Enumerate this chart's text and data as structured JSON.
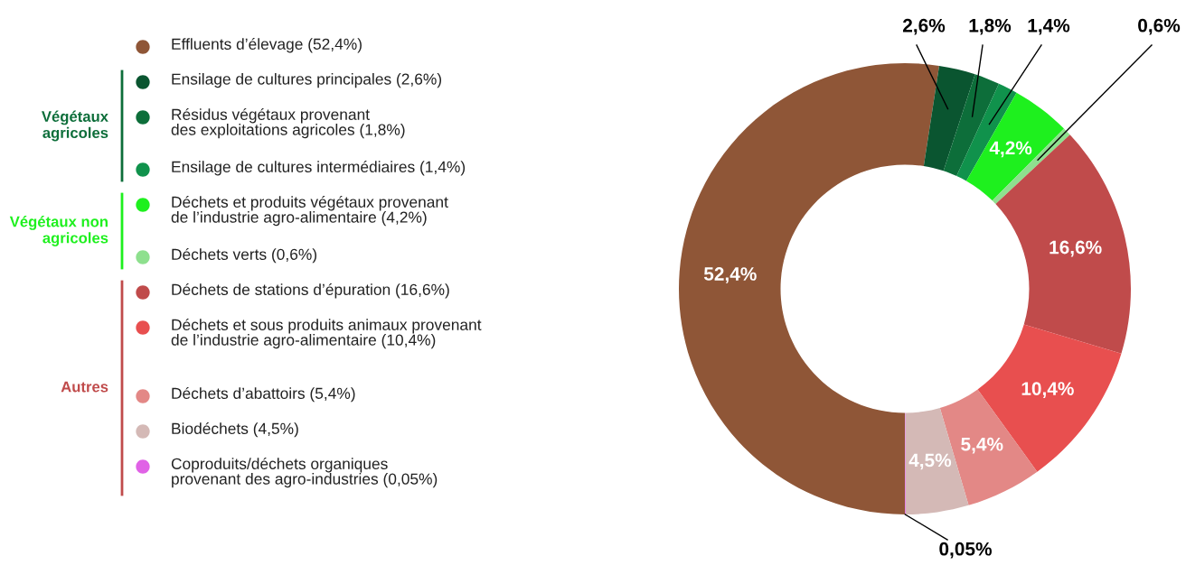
{
  "chart_data": {
    "type": "donut",
    "categories": [
      "Effluents d’élevage (52,4%)",
      "Ensilage de cultures principales (2,6%)",
      "Résidus végétaux provenant\ndes exploitations agricoles (1,8%)",
      "Ensilage de cultures intermédiaires (1,4%)",
      "Déchets et produits végétaux provenant\nde l’industrie agro-alimentaire (4,2%)",
      "Déchets verts (0,6%)",
      "Déchets de stations d’épuration (16,6%)",
      "Déchets et sous produits animaux provenant\nde l’industrie agro-alimentaire (10,4%)",
      "Déchets d’abattoirs (5,4%)",
      "Biodéchets (4,5%)",
      "Coproduits/déchets organiques\nprovenant des agro-industries (0,05%)"
    ],
    "values": [
      52.4,
      2.6,
      1.8,
      1.4,
      4.2,
      0.6,
      16.6,
      10.4,
      5.4,
      4.5,
      0.05
    ],
    "value_labels": [
      "52,4%",
      "2,6%",
      "1,8%",
      "1,4%",
      "4,2%",
      "0,6%",
      "16,6%",
      "10,4%",
      "5,4%",
      "4,5%",
      "0,05%"
    ],
    "colors": [
      "#8f5637",
      "#0a5530",
      "#0d6e3a",
      "#10924c",
      "#1ef01e",
      "#8ee08e",
      "#c04b4b",
      "#e84f4f",
      "#e38886",
      "#d4b9b6",
      "#e062e6"
    ],
    "annotations": [
      "Végétaux\nagricoles",
      "Végétaux non\nagricoles",
      "Autres"
    ],
    "legend": "left"
  }
}
